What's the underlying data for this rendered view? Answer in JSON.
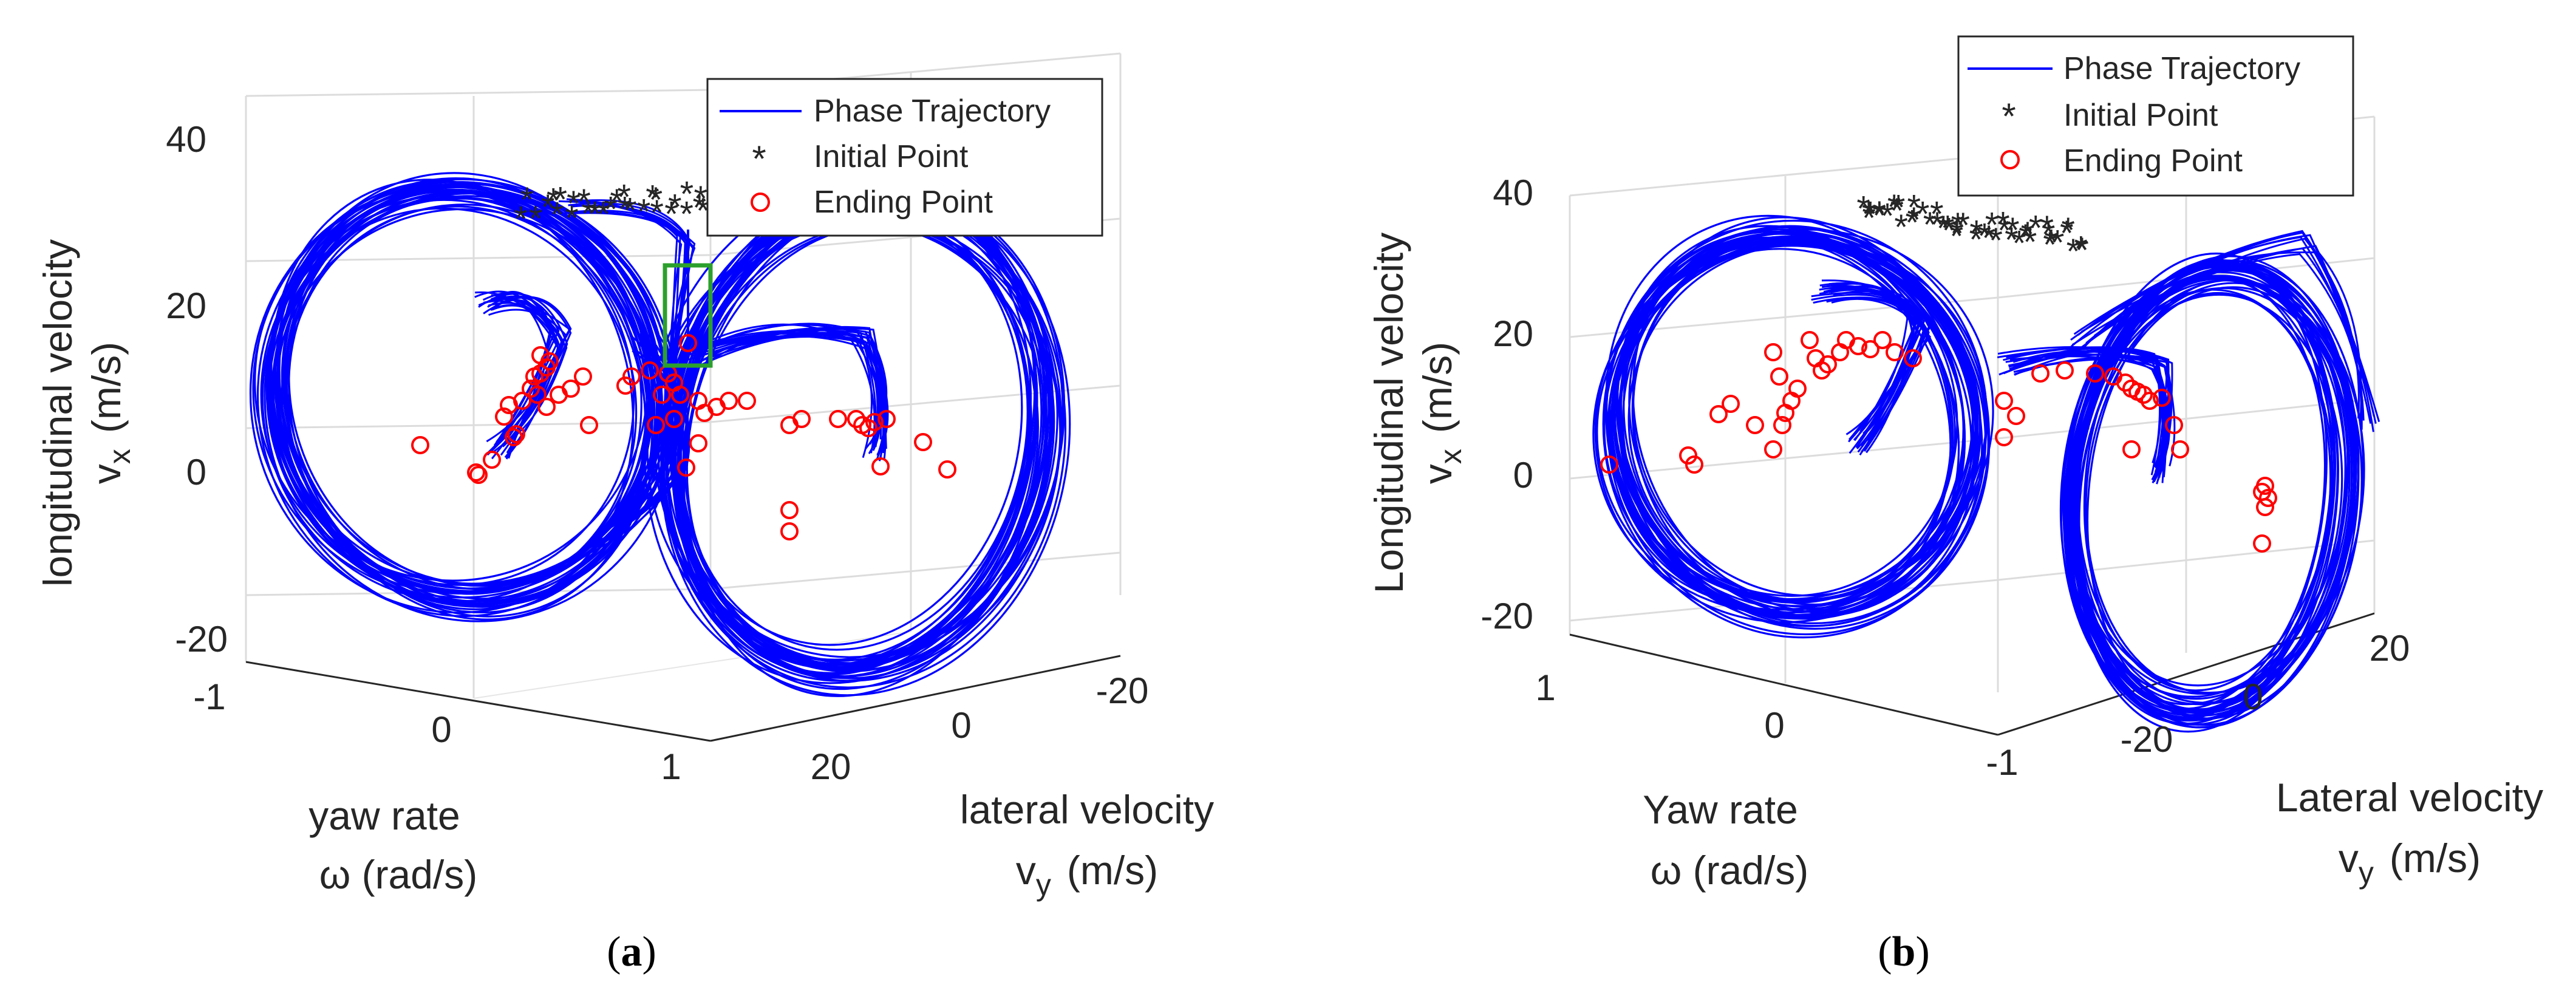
{
  "chart_data": [
    {
      "type": "line",
      "panel_label": "a",
      "title": "",
      "series": [
        {
          "name": "Phase Trajectory",
          "color": "#0000ff",
          "marker": "line"
        },
        {
          "name": "Initial Point",
          "color": "#ff00ff",
          "marker": "asterisk"
        },
        {
          "name": "Ending Point",
          "color": "#ff0000",
          "marker": "circle"
        }
      ],
      "legend": [
        "Phase Trajectory",
        "Initial Point",
        "Ending Point"
      ],
      "z_axis": {
        "label": "longitudinal velocity",
        "symbol_base": "v",
        "symbol_sub": "x",
        "units": "(m/s)",
        "ticks": [
          "40",
          "20",
          "0",
          "-20"
        ],
        "range": [
          -20,
          40
        ]
      },
      "x_axis": {
        "label": "yaw rate",
        "sub": "ω (rad/s)",
        "ticks": [
          "-1",
          "0",
          "1"
        ],
        "range": [
          -1,
          1
        ]
      },
      "y_axis": {
        "label": "lateral velocity",
        "symbol_base": "v",
        "symbol_sub": "y",
        "units": "(m/s)",
        "ticks": [
          "20",
          "0",
          "-20"
        ],
        "range": [
          -20,
          20
        ]
      },
      "annotation": "green highlight box around one trajectory ending near v_x ≈ 15 m/s",
      "grid": true
    },
    {
      "type": "line",
      "panel_label": "b",
      "title": "",
      "series": [
        {
          "name": "Phase Trajectory",
          "color": "#0000ff",
          "marker": "line"
        },
        {
          "name": "Initial Point",
          "color": "#ff00ff",
          "marker": "asterisk"
        },
        {
          "name": "Ending Point",
          "color": "#ff0000",
          "marker": "circle"
        }
      ],
      "legend": [
        "Phase Trajectory",
        "Initial Point",
        "Ending Point"
      ],
      "z_axis": {
        "label": "Longitudinal velocity",
        "symbol_base": "v",
        "symbol_sub": "x",
        "units": "(m/s)",
        "ticks": [
          "40",
          "20",
          "0",
          "-20"
        ],
        "range": [
          -20,
          40
        ]
      },
      "x_axis": {
        "label": "Yaw rate",
        "sub": "ω (rad/s)",
        "ticks": [
          "1",
          "0",
          "-1"
        ],
        "range": [
          -1,
          1
        ]
      },
      "y_axis": {
        "label": "Lateral velocity",
        "symbol_base": "v",
        "symbol_sub": "y",
        "units": "(m/s)",
        "ticks": [
          "20",
          "0",
          "-20"
        ],
        "range": [
          -20,
          20
        ]
      },
      "grid": true
    }
  ],
  "colors": {
    "trajectory": "#0000ff",
    "initial": "#ff00ff",
    "ending": "#ff0000",
    "highlight": "#2ca02c"
  }
}
